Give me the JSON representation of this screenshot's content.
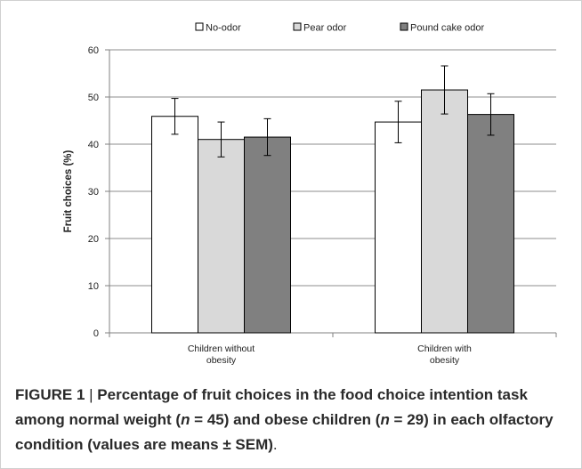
{
  "chart_data": {
    "type": "bar",
    "categories": [
      "Children without obesity",
      "Children with obesity"
    ],
    "category_lines": [
      [
        "Children without",
        "obesity"
      ],
      [
        "Children with",
        "obesity"
      ]
    ],
    "series": [
      {
        "name": "No-odor",
        "values": [
          45.9,
          44.7
        ],
        "errors": [
          3.8,
          4.4
        ],
        "color": "#ffffff"
      },
      {
        "name": "Pear odor",
        "values": [
          41.0,
          51.5
        ],
        "errors": [
          3.7,
          5.1
        ],
        "color": "#d9d9d9"
      },
      {
        "name": "Pound cake odor",
        "values": [
          41.5,
          46.3
        ],
        "errors": [
          3.9,
          4.4
        ],
        "color": "#808080"
      }
    ],
    "ylabel": "Fruit choices (%)",
    "ylim": [
      0,
      60
    ],
    "yticks": [
      0,
      10,
      20,
      30,
      40,
      50,
      60
    ],
    "grid": true,
    "legend": "top"
  },
  "caption": {
    "label": "FIGURE 1",
    "separator": "|",
    "text_parts": [
      {
        "t": "Percentage of fruit choices in the food choice intention task among normal weight (",
        "i": false
      },
      {
        "t": "n",
        "i": true
      },
      {
        "t": " = 45) and obese children (",
        "i": false
      },
      {
        "t": "n",
        "i": true
      },
      {
        "t": " = 29) in each olfactory condition (values are means ± SEM)",
        "i": false
      }
    ],
    "end": "."
  }
}
